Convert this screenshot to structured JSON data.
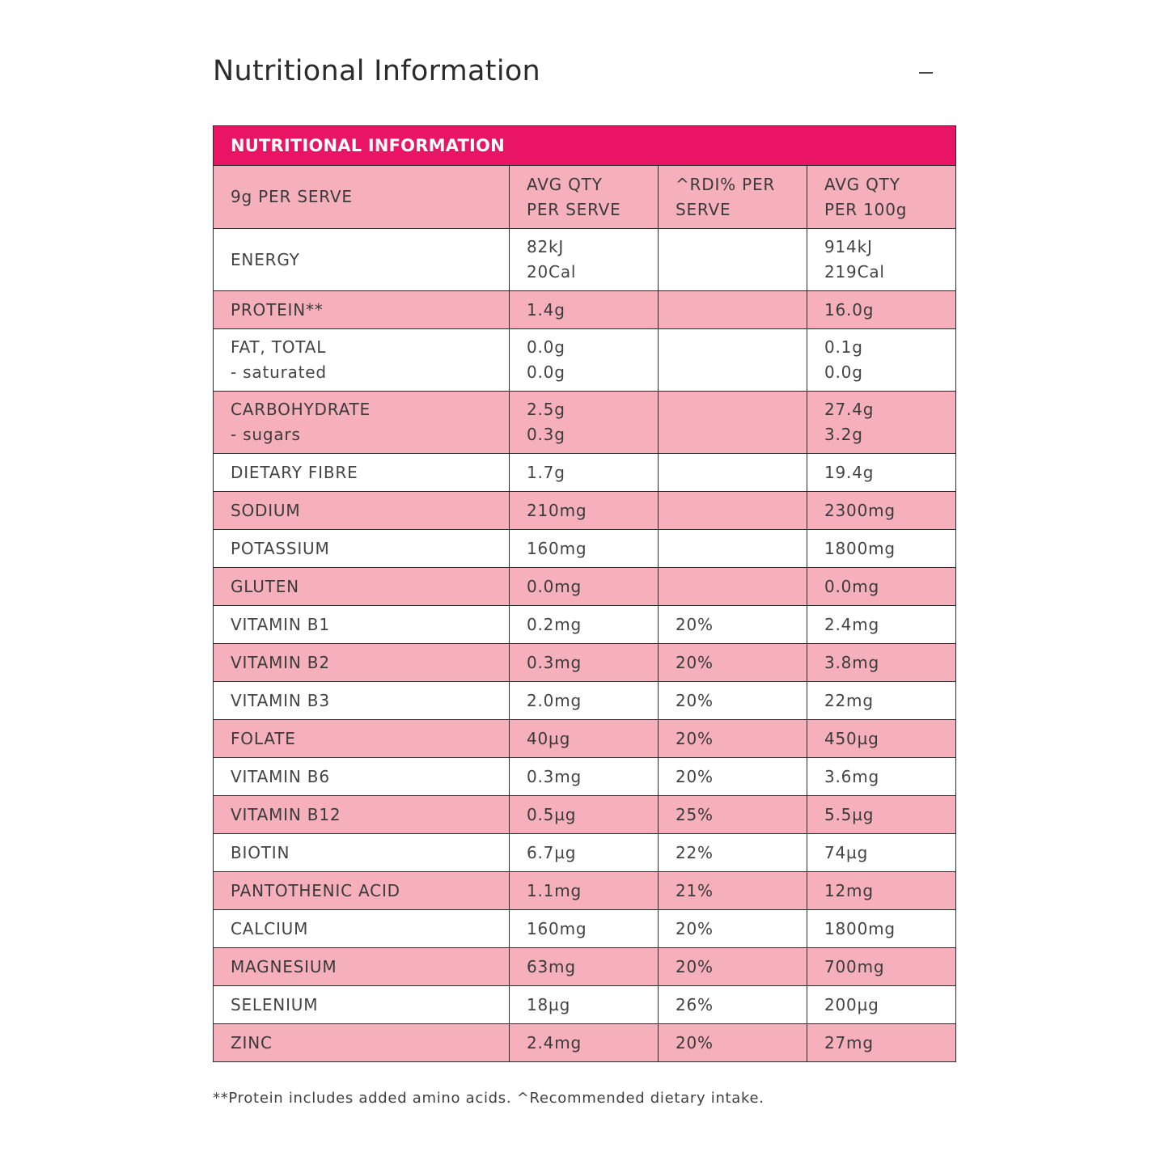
{
  "section": {
    "title": "Nutritional Information",
    "collapse_icon": "minus-icon"
  },
  "table": {
    "title": "NUTRITIONAL INFORMATION",
    "header": {
      "serve": "9g PER SERVE",
      "avg_per_serve": [
        "AVG QTY",
        "PER SERVE"
      ],
      "rdi": [
        "^RDI% PER",
        "SERVE"
      ],
      "avg_per_100g": [
        "AVG QTY",
        "PER 100g"
      ]
    },
    "rows": [
      {
        "name": [
          "ENERGY"
        ],
        "per_serve": [
          "82kJ",
          "20Cal"
        ],
        "rdi": "",
        "per_100g": [
          "914kJ",
          "219Cal"
        ]
      },
      {
        "name": [
          "PROTEIN**"
        ],
        "per_serve": [
          "1.4g"
        ],
        "rdi": "",
        "per_100g": [
          "16.0g"
        ]
      },
      {
        "name": [
          "FAT, TOTAL",
          "- saturated"
        ],
        "per_serve": [
          "0.0g",
          "0.0g"
        ],
        "rdi": "",
        "per_100g": [
          "0.1g",
          "0.0g"
        ]
      },
      {
        "name": [
          "CARBOHYDRATE",
          "- sugars"
        ],
        "per_serve": [
          "2.5g",
          "0.3g"
        ],
        "rdi": "",
        "per_100g": [
          "27.4g",
          "3.2g"
        ]
      },
      {
        "name": [
          "DIETARY FIBRE"
        ],
        "per_serve": [
          "1.7g"
        ],
        "rdi": "",
        "per_100g": [
          "19.4g"
        ]
      },
      {
        "name": [
          "SODIUM"
        ],
        "per_serve": [
          "210mg"
        ],
        "rdi": "",
        "per_100g": [
          "2300mg"
        ]
      },
      {
        "name": [
          "POTASSIUM"
        ],
        "per_serve": [
          "160mg"
        ],
        "rdi": "",
        "per_100g": [
          "1800mg"
        ]
      },
      {
        "name": [
          "GLUTEN"
        ],
        "per_serve": [
          "0.0mg"
        ],
        "rdi": "",
        "per_100g": [
          "0.0mg"
        ]
      },
      {
        "name": [
          "VITAMIN B1"
        ],
        "per_serve": [
          "0.2mg"
        ],
        "rdi": "20%",
        "per_100g": [
          "2.4mg"
        ]
      },
      {
        "name": [
          "VITAMIN B2"
        ],
        "per_serve": [
          "0.3mg"
        ],
        "rdi": "20%",
        "per_100g": [
          "3.8mg"
        ]
      },
      {
        "name": [
          "VITAMIN B3"
        ],
        "per_serve": [
          "2.0mg"
        ],
        "rdi": "20%",
        "per_100g": [
          "22mg"
        ]
      },
      {
        "name": [
          "FOLATE"
        ],
        "per_serve": [
          "40µg"
        ],
        "rdi": "20%",
        "per_100g": [
          "450µg"
        ]
      },
      {
        "name": [
          "VITAMIN B6"
        ],
        "per_serve": [
          "0.3mg"
        ],
        "rdi": "20%",
        "per_100g": [
          "3.6mg"
        ]
      },
      {
        "name": [
          "VITAMIN B12"
        ],
        "per_serve": [
          "0.5µg"
        ],
        "rdi": "25%",
        "per_100g": [
          "5.5µg"
        ]
      },
      {
        "name": [
          "BIOTIN"
        ],
        "per_serve": [
          "6.7µg"
        ],
        "rdi": "22%",
        "per_100g": [
          "74µg"
        ]
      },
      {
        "name": [
          "PANTOTHENIC ACID"
        ],
        "per_serve": [
          "1.1mg"
        ],
        "rdi": "21%",
        "per_100g": [
          "12mg"
        ]
      },
      {
        "name": [
          "CALCIUM"
        ],
        "per_serve": [
          "160mg"
        ],
        "rdi": "20%",
        "per_100g": [
          "1800mg"
        ]
      },
      {
        "name": [
          "MAGNESIUM"
        ],
        "per_serve": [
          "63mg"
        ],
        "rdi": "20%",
        "per_100g": [
          "700mg"
        ]
      },
      {
        "name": [
          "SELENIUM"
        ],
        "per_serve": [
          "18µg"
        ],
        "rdi": "26%",
        "per_100g": [
          "200µg"
        ]
      },
      {
        "name": [
          "ZINC"
        ],
        "per_serve": [
          "2.4mg"
        ],
        "rdi": "20%",
        "per_100g": [
          "27mg"
        ]
      }
    ]
  },
  "footnote": "**Protein includes added amino acids. ^Recommended dietary intake.",
  "colors": {
    "title_bar": "#e91463",
    "pink_row": "#f6b0bb",
    "white_row": "#ffffff",
    "border": "#2a2a2a"
  }
}
